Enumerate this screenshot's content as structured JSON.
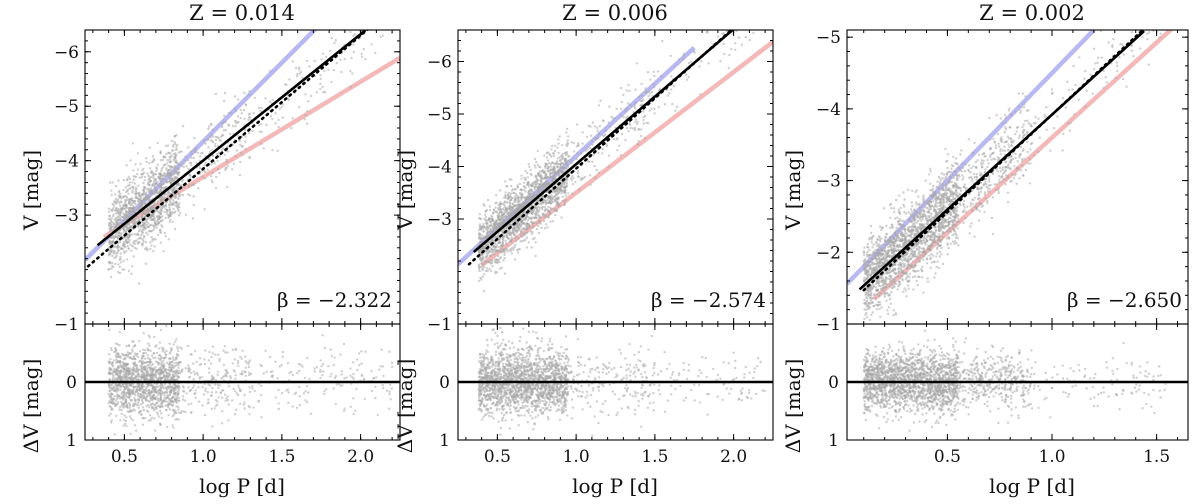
{
  "chart_data": [
    {
      "type": "scatter",
      "title": "Z = 0.014",
      "xlabel": "log P [d]",
      "ylabel_top": "V [mag]",
      "ylabel_bottom": "ΔV [mag]",
      "xlim": [
        0.25,
        2.25
      ],
      "ylim_top": [
        -1.0,
        -6.4
      ],
      "ylim_bottom": [
        1.0,
        -1.0
      ],
      "xticks": [
        0.5,
        1.0,
        1.5,
        2.0
      ],
      "xtick_labels": [
        "0.5",
        "1.0",
        "1.5",
        "2.0"
      ],
      "yticks_top": [
        -1,
        -3,
        -4,
        -5,
        -6
      ],
      "ytick_labels_top": [
        "−1",
        "−3",
        "−4",
        "−5",
        "−6"
      ],
      "yticks_bottom": [
        0,
        1
      ],
      "ytick_labels_bottom": [
        "0",
        "1"
      ],
      "beta_label": "β = −2.322",
      "fit_line": {
        "slope": -2.322,
        "intercept": -1.68,
        "x_range": [
          0.33,
          2.03
        ]
      },
      "dotted_line": {
        "slope": -2.45,
        "intercept": -1.4,
        "x_range": [
          0.27,
          2.05
        ]
      },
      "blue_edge": {
        "slope": -2.9,
        "intercept": -1.45,
        "x_range": [
          0.25,
          1.72
        ]
      },
      "red_edge": {
        "slope": -1.75,
        "intercept": -1.95,
        "x_range": [
          0.37,
          2.25
        ]
      },
      "scatter_density": [
        {
          "x_range": [
            0.4,
            0.85
          ],
          "n": 1400
        },
        {
          "x_range": [
            0.85,
            1.3
          ],
          "n": 220
        },
        {
          "x_range": [
            1.3,
            2.2
          ],
          "n": 160
        }
      ],
      "scatter_spread_top": 0.35,
      "scatter_spread_bottom": 0.3
    },
    {
      "type": "scatter",
      "title": "Z = 0.006",
      "xlabel": "log P [d]",
      "ylabel_top": "V [mag]",
      "ylabel_bottom": "ΔV [mag]",
      "xlim": [
        0.25,
        2.25
      ],
      "ylim_top": [
        -1.0,
        -6.6
      ],
      "ylim_bottom": [
        1.0,
        -1.0
      ],
      "xticks": [
        0.5,
        1.0,
        1.5,
        2.0
      ],
      "xtick_labels": [
        "0.5",
        "1.0",
        "1.5",
        "2.0"
      ],
      "yticks_top": [
        -1,
        -3,
        -4,
        -5,
        -6
      ],
      "ytick_labels_top": [
        "−1",
        "−3",
        "−4",
        "−5",
        "−6"
      ],
      "yticks_bottom": [
        0,
        1
      ],
      "ytick_labels_bottom": [
        "0",
        "1"
      ],
      "beta_label": "β = −2.574",
      "fit_line": {
        "slope": -2.574,
        "intercept": -1.47,
        "x_range": [
          0.35,
          2.02
        ]
      },
      "dotted_line": {
        "slope": -2.68,
        "intercept": -1.28,
        "x_range": [
          0.32,
          2.0
        ]
      },
      "blue_edge": {
        "slope": -2.75,
        "intercept": -1.45,
        "x_range": [
          0.25,
          1.75
        ]
      },
      "red_edge": {
        "slope": -2.3,
        "intercept": -1.2,
        "x_range": [
          0.4,
          2.25
        ]
      },
      "scatter_density": [
        {
          "x_range": [
            0.38,
            0.95
          ],
          "n": 1800
        },
        {
          "x_range": [
            0.95,
            1.5
          ],
          "n": 200
        },
        {
          "x_range": [
            1.5,
            2.2
          ],
          "n": 90
        }
      ],
      "scatter_spread_top": 0.3,
      "scatter_spread_bottom": 0.28
    },
    {
      "type": "scatter",
      "title": "Z = 0.002",
      "xlabel": "log P [d]",
      "ylabel_top": "V [mag]",
      "ylabel_bottom": "ΔV [mag]",
      "xlim": [
        0.02,
        1.65
      ],
      "ylim_top": [
        -1.0,
        -5.1
      ],
      "ylim_bottom": [
        1.0,
        -1.0
      ],
      "xticks": [
        0.5,
        1.0,
        1.5
      ],
      "xtick_labels": [
        "0.5",
        "1.0",
        "1.5"
      ],
      "yticks_top": [
        -1,
        -2,
        -3,
        -4,
        -5
      ],
      "ytick_labels_top": [
        "−1",
        "−2",
        "−3",
        "−4",
        "−5"
      ],
      "yticks_bottom": [
        0,
        1
      ],
      "ytick_labels_bottom": [
        "0",
        "1"
      ],
      "beta_label": "β = −2.650",
      "fit_line": {
        "slope": -2.65,
        "intercept": -1.27,
        "x_range": [
          0.08,
          1.44
        ]
      },
      "dotted_line": {
        "slope": -2.72,
        "intercept": -1.2,
        "x_range": [
          0.1,
          1.44
        ]
      },
      "blue_edge": {
        "slope": -3.0,
        "intercept": -1.5,
        "x_range": [
          0.02,
          1.2
        ]
      },
      "red_edge": {
        "slope": -2.65,
        "intercept": -0.95,
        "x_range": [
          0.15,
          1.65
        ]
      },
      "scatter_density": [
        {
          "x_range": [
            0.1,
            0.55
          ],
          "n": 1900
        },
        {
          "x_range": [
            0.55,
            0.9
          ],
          "n": 400
        },
        {
          "x_range": [
            0.9,
            1.55
          ],
          "n": 110
        }
      ],
      "scatter_spread_top": 0.28,
      "scatter_spread_bottom": 0.25
    }
  ],
  "colors": {
    "scatter": "#a8a8a8",
    "fit_line": "#000000",
    "blue_edge": "#b8b8f2",
    "red_edge": "#f4b8b8"
  }
}
